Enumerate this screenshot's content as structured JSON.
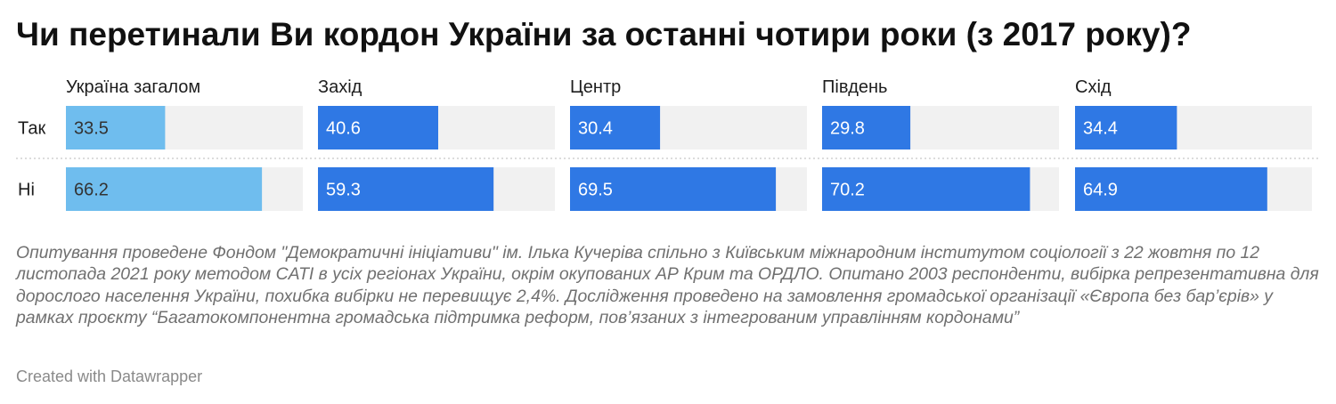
{
  "title": "Чи перетинали Ви кордон України за останні чотири роки (з 2017 року)?",
  "notes": "Опитування проведене Фондом \"Демократичні ініціативи\" ім. Ілька Кучеріва спільно з Київським міжнародним інститутом соціології з 22 жовтня по 12 листопада 2021 року методом CATI в усіх регіонах України, окрім окупованих АР Крим та ОРДЛО. Опитано 2003 респонденти, вибірка репрезентативна для дорослого населення України, похибка вибірки не перевищує 2,4%. Дослідження проведено на замовлення громадської організації «Європа без бар’єрів» у рамках проєкту “Багатокомпонентна громадська підтримка реформ, пов’язаних з інтегрованим управлінням кордонами”",
  "credit": "Created with Datawrapper",
  "colors": {
    "highlight": "#6fbdee",
    "bar": "#2f78e4",
    "track": "#f1f1f1",
    "separator": "#c8c8c8"
  },
  "chart_data": {
    "type": "bar",
    "orientation": "horizontal",
    "layout": "small-multiples",
    "xlim": [
      0,
      80
    ],
    "categories": [
      "Так",
      "Ні"
    ],
    "series": [
      {
        "name": "Україна загалом",
        "values": [
          33.5,
          66.2
        ]
      },
      {
        "name": "Захід",
        "values": [
          40.6,
          59.3
        ]
      },
      {
        "name": "Центр",
        "values": [
          30.4,
          69.5
        ]
      },
      {
        "name": "Південь",
        "values": [
          29.8,
          70.2
        ]
      },
      {
        "name": "Схід",
        "values": [
          34.4,
          64.9
        ]
      }
    ]
  }
}
